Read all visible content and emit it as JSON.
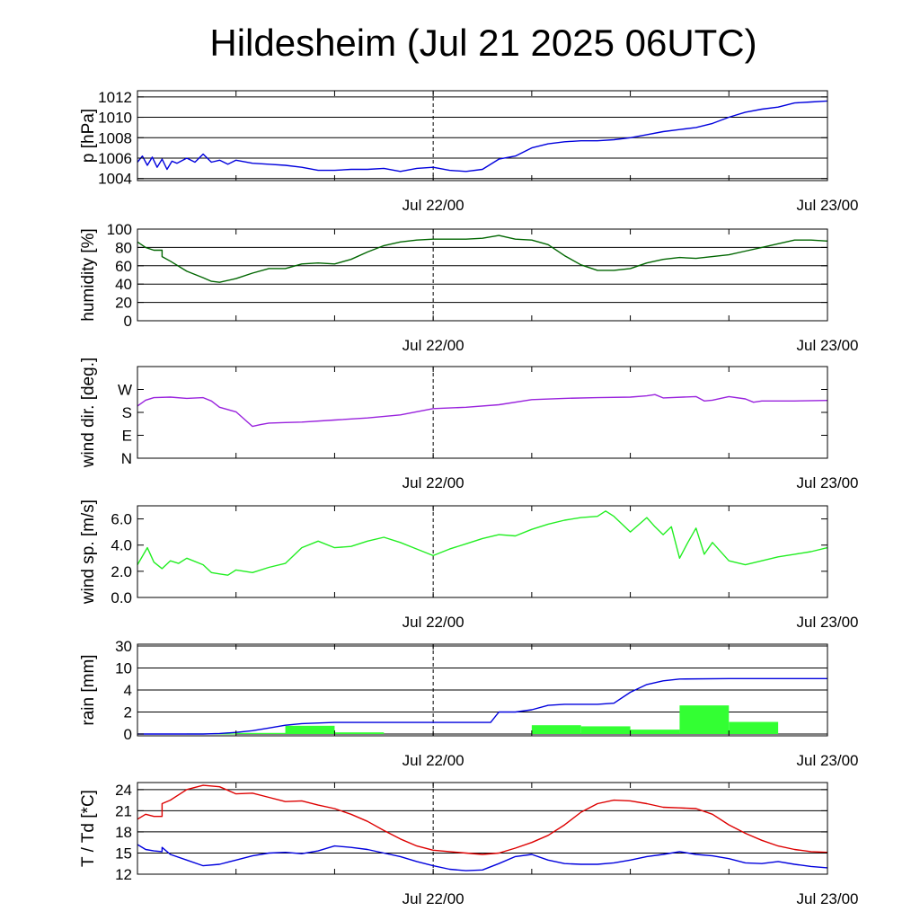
{
  "title": "Hildesheim (Jul 21 2025 06UTC)",
  "chart_data": [
    {
      "type": "line",
      "ylabel": "p [hPa]",
      "ylim": [
        1003.8,
        1012.6
      ],
      "yticks": [
        {
          "v": 1004,
          "label": "1004"
        },
        {
          "v": 1006,
          "label": "1006"
        },
        {
          "v": 1008,
          "label": "1008"
        },
        {
          "v": 1010,
          "label": "1010"
        },
        {
          "v": 1012,
          "label": "1012"
        }
      ],
      "xlim": [
        0,
        42
      ],
      "xticks": [
        {
          "v": 18,
          "label": "Jul 22/00"
        },
        {
          "v": 42,
          "label": "Jul 23/00"
        }
      ],
      "grid": true,
      "series": [
        {
          "color": "#0000dd",
          "x": [
            0,
            0.3,
            0.6,
            0.9,
            1.2,
            1.5,
            1.8,
            2.1,
            2.4,
            3,
            3.5,
            4,
            4.5,
            5,
            5.5,
            6,
            7,
            8,
            9,
            10,
            11,
            12,
            13,
            14,
            15,
            16,
            17,
            18,
            19,
            20,
            21,
            22,
            23,
            24,
            25,
            26,
            27,
            28,
            29,
            30,
            31,
            32,
            33,
            34,
            35,
            36,
            37,
            38,
            39,
            40,
            41,
            42
          ],
          "y": [
            1005.6,
            1006.2,
            1005.3,
            1006.1,
            1005.1,
            1005.9,
            1004.9,
            1005.7,
            1005.5,
            1006.0,
            1005.6,
            1006.4,
            1005.6,
            1005.8,
            1005.4,
            1005.8,
            1005.5,
            1005.4,
            1005.3,
            1005.1,
            1004.8,
            1004.8,
            1004.9,
            1004.9,
            1005.0,
            1004.7,
            1005.0,
            1005.1,
            1004.8,
            1004.7,
            1004.9,
            1005.9,
            1006.2,
            1007.0,
            1007.4,
            1007.6,
            1007.7,
            1007.7,
            1007.8,
            1008.0,
            1008.3,
            1008.6,
            1008.8,
            1009.0,
            1009.4,
            1010.0,
            1010.5,
            1010.8,
            1011.0,
            1011.4,
            1011.5,
            1011.6
          ]
        }
      ]
    },
    {
      "type": "line",
      "ylabel": "humidity [%]",
      "ylim": [
        0,
        100
      ],
      "yticks": [
        {
          "v": 0,
          "label": "0"
        },
        {
          "v": 20,
          "label": "20"
        },
        {
          "v": 40,
          "label": "40"
        },
        {
          "v": 60,
          "label": "60"
        },
        {
          "v": 80,
          "label": "80"
        },
        {
          "v": 100,
          "label": "100"
        }
      ],
      "xlim": [
        0,
        42
      ],
      "xticks": [
        {
          "v": 18,
          "label": "Jul 22/00"
        },
        {
          "v": 42,
          "label": "Jul 23/00"
        }
      ],
      "grid": true,
      "series": [
        {
          "color": "#006600",
          "x": [
            0,
            0.5,
            1,
            1.5,
            1.5,
            2,
            3,
            4,
            4.5,
            5,
            6,
            7,
            8,
            9,
            10,
            11,
            12,
            13,
            14,
            15,
            16,
            17,
            18,
            19,
            20,
            21,
            22,
            23,
            24,
            25,
            26,
            27,
            28,
            29,
            30,
            31,
            32,
            33,
            34,
            35,
            36,
            37,
            38,
            39,
            40,
            41,
            42
          ],
          "y": [
            86,
            80,
            77,
            77,
            70,
            65,
            54,
            47,
            43,
            42,
            46,
            52,
            57,
            57,
            62,
            63,
            62,
            67,
            75,
            82,
            86,
            88,
            89,
            89,
            89,
            90,
            93,
            89,
            88,
            83,
            71,
            61,
            55,
            55,
            57,
            63,
            67,
            69,
            68,
            70,
            72,
            76,
            80,
            84,
            88,
            88,
            87
          ]
        }
      ]
    },
    {
      "type": "line",
      "ylabel": "wind dir. [deg.]",
      "ylim": [
        0,
        360
      ],
      "yticks": [
        {
          "v": 0,
          "label": "N"
        },
        {
          "v": 90,
          "label": "E"
        },
        {
          "v": 180,
          "label": "S"
        },
        {
          "v": 270,
          "label": "W"
        }
      ],
      "xlim": [
        0,
        42
      ],
      "xticks": [
        {
          "v": 18,
          "label": "Jul 22/00"
        },
        {
          "v": 42,
          "label": "Jul 23/00"
        }
      ],
      "grid": false,
      "series": [
        {
          "color": "#9922dd",
          "x": [
            0,
            0.5,
            1,
            2,
            3,
            4,
            4.5,
            5,
            6,
            7,
            7.5,
            8,
            9,
            10,
            12,
            14,
            16,
            18,
            20,
            22,
            24,
            26,
            28,
            30,
            31,
            31.5,
            32,
            34,
            34.5,
            35,
            36,
            37,
            37.5,
            38,
            40,
            42
          ],
          "y": [
            205,
            228,
            238,
            240,
            235,
            238,
            225,
            200,
            182,
            125,
            132,
            138,
            140,
            142,
            150,
            158,
            170,
            195,
            200,
            210,
            230,
            235,
            238,
            240,
            245,
            250,
            237,
            242,
            225,
            228,
            242,
            233,
            220,
            225,
            225,
            227
          ]
        }
      ]
    },
    {
      "type": "line",
      "ylabel": "wind sp. [m/s]",
      "ylim": [
        0,
        7
      ],
      "yticks": [
        {
          "v": 0,
          "label": "0.0"
        },
        {
          "v": 2,
          "label": "2.0"
        },
        {
          "v": 4,
          "label": "4.0"
        },
        {
          "v": 6,
          "label": "6.0"
        }
      ],
      "xlim": [
        0,
        42
      ],
      "xticks": [
        {
          "v": 18,
          "label": "Jul 22/00"
        },
        {
          "v": 42,
          "label": "Jul 23/00"
        }
      ],
      "grid": false,
      "series": [
        {
          "color": "#22ee22",
          "x": [
            0,
            0.6,
            1,
            1.5,
            2,
            2.5,
            3,
            4,
            4.5,
            5,
            5.5,
            6,
            7,
            8,
            9,
            10,
            11,
            12,
            13,
            14,
            15,
            16,
            17,
            18,
            19,
            20,
            21,
            22,
            23,
            24,
            25,
            26,
            27,
            28,
            28.5,
            29,
            30,
            31,
            31.5,
            32,
            32.5,
            33,
            33.5,
            34,
            34.5,
            35,
            36,
            37,
            38,
            39,
            40,
            41,
            42
          ],
          "y": [
            2.5,
            3.8,
            2.7,
            2.2,
            2.8,
            2.6,
            3.0,
            2.5,
            1.9,
            1.8,
            1.7,
            2.1,
            1.9,
            2.3,
            2.6,
            3.8,
            4.3,
            3.8,
            3.9,
            4.3,
            4.6,
            4.2,
            3.7,
            3.2,
            3.7,
            4.1,
            4.5,
            4.8,
            4.7,
            5.2,
            5.6,
            5.9,
            6.1,
            6.2,
            6.6,
            6.2,
            5.0,
            6.1,
            5.4,
            4.8,
            5.4,
            3.0,
            4.2,
            5.3,
            3.3,
            4.2,
            2.8,
            2.5,
            2.8,
            3.1,
            3.3,
            3.5,
            3.8
          ]
        }
      ]
    },
    {
      "type": "bar",
      "ylabel": "rain [mm]",
      "scale": "custom",
      "ytick_values": [
        0,
        2,
        4,
        10,
        30
      ],
      "yticks": [
        {
          "v": 0,
          "label": "0"
        },
        {
          "v": 2,
          "label": "2"
        },
        {
          "v": 4,
          "label": "4"
        },
        {
          "v": 10,
          "label": "10"
        },
        {
          "v": 30,
          "label": "30"
        }
      ],
      "xlim": [
        0,
        42
      ],
      "xticks": [
        {
          "v": 18,
          "label": "Jul 22/00"
        },
        {
          "v": 42,
          "label": "Jul 23/00"
        }
      ],
      "grid": true,
      "bars": {
        "color": "#33ff33",
        "width": 3,
        "x": [
          4.5,
          7.5,
          10.5,
          13.5,
          16.5,
          19.5,
          22.5,
          25.5,
          28.5,
          31.5,
          34.5,
          37.5,
          40.5
        ],
        "values": [
          0.05,
          0.1,
          0.75,
          0.15,
          0,
          0,
          0,
          0.8,
          0.7,
          0.4,
          2.6,
          1.1,
          0
        ]
      },
      "series": [
        {
          "color": "#0000dd",
          "name": "",
          "x": [
            0,
            4,
            5,
            6,
            7,
            8,
            9,
            10,
            12,
            16,
            18,
            20,
            21.5,
            22,
            23,
            24,
            25,
            26,
            27,
            28,
            29,
            30,
            31,
            32,
            33,
            36,
            42
          ],
          "y": [
            0,
            0,
            0.05,
            0.15,
            0.3,
            0.55,
            0.8,
            0.95,
            1.05,
            1.05,
            1.05,
            1.05,
            1.05,
            2.0,
            2.0,
            2.2,
            2.6,
            2.7,
            2.7,
            2.7,
            2.8,
            3.8,
            5.5,
            6.5,
            7.0,
            7.1,
            7.1
          ]
        }
      ]
    },
    {
      "type": "line",
      "ylabel": "T / Td [*C]",
      "ylim": [
        12,
        25
      ],
      "yticks": [
        {
          "v": 12,
          "label": "12"
        },
        {
          "v": 15,
          "label": "15"
        },
        {
          "v": 18,
          "label": "18"
        },
        {
          "v": 21,
          "label": "21"
        },
        {
          "v": 24,
          "label": "24"
        }
      ],
      "xlim": [
        0,
        42
      ],
      "xticks": [
        {
          "v": 18,
          "label": "Jul 22/00"
        },
        {
          "v": 42,
          "label": "Jul 23/00"
        }
      ],
      "grid": true,
      "series": [
        {
          "color": "#dd0000",
          "x": [
            0,
            0.5,
            1,
            1.5,
            1.5,
            2,
            3,
            4,
            5,
            6,
            7,
            8,
            9,
            10,
            11,
            12,
            13,
            14,
            15,
            16,
            17,
            18,
            19,
            20,
            21,
            22,
            23,
            24,
            25,
            26,
            27,
            28,
            29,
            30,
            31,
            32,
            33,
            34,
            35,
            36,
            37,
            38,
            39,
            40,
            41,
            42
          ],
          "y": [
            19.8,
            20.5,
            20.2,
            20.2,
            22,
            22.5,
            24,
            24.6,
            24.4,
            23.4,
            23.5,
            22.9,
            22.3,
            22.4,
            21.8,
            21.3,
            20.5,
            19.5,
            18.2,
            17.0,
            16.0,
            15.4,
            15.2,
            15.0,
            14.8,
            15.0,
            15.7,
            16.5,
            17.5,
            19.0,
            20.8,
            22.0,
            22.5,
            22.4,
            22.0,
            21.5,
            21.4,
            21.3,
            20.5,
            19.0,
            17.8,
            16.8,
            16.0,
            15.5,
            15.2,
            15.1
          ]
        },
        {
          "color": "#0000dd",
          "x": [
            0,
            0.5,
            1,
            1.5,
            1.5,
            2,
            3,
            4,
            5,
            6,
            7,
            8,
            9,
            10,
            11,
            12,
            13,
            14,
            15,
            16,
            17,
            18,
            19,
            20,
            21,
            22,
            23,
            24,
            25,
            26,
            27,
            28,
            29,
            30,
            31,
            32,
            33,
            34,
            35,
            36,
            37,
            38,
            39,
            40,
            41,
            42
          ],
          "y": [
            16.2,
            15.5,
            15.3,
            15.2,
            15.8,
            14.8,
            14.0,
            13.2,
            13.4,
            14.0,
            14.6,
            15.0,
            15.1,
            14.9,
            15.3,
            16.0,
            15.8,
            15.5,
            15.0,
            14.5,
            13.8,
            13.2,
            12.7,
            12.5,
            12.6,
            13.5,
            14.5,
            14.8,
            14.0,
            13.5,
            13.4,
            13.4,
            13.6,
            14.0,
            14.5,
            14.8,
            15.2,
            14.8,
            14.6,
            14.2,
            13.6,
            13.5,
            13.8,
            13.4,
            13.1,
            12.9
          ]
        }
      ]
    }
  ]
}
